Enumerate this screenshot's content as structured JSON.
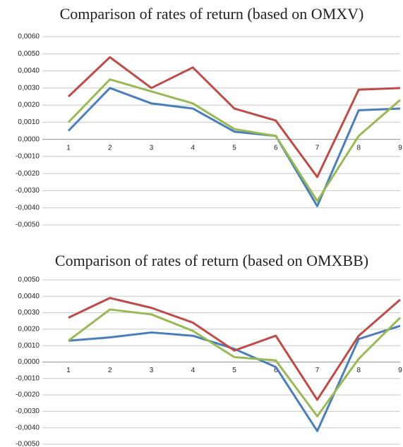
{
  "chart_data": [
    {
      "type": "line",
      "title": "Comparison of rates of return (based on OMXV)",
      "categories": [
        "1",
        "2",
        "3",
        "4",
        "5",
        "6",
        "7",
        "8",
        "9"
      ],
      "series": [
        {
          "color": "#4a7ebb",
          "values": [
            0.0005,
            0.003,
            0.0021,
            0.0018,
            0.00045,
            0.0002,
            -0.0039,
            0.0017,
            0.0018
          ]
        },
        {
          "color": "#be4b48",
          "values": [
            0.0025,
            0.0048,
            0.003,
            0.0042,
            0.0018,
            0.0011,
            -0.0022,
            0.0029,
            0.003
          ]
        },
        {
          "color": "#98b954",
          "values": [
            0.001,
            0.0035,
            0.0028,
            0.0021,
            0.0006,
            0.0002,
            -0.0036,
            0.0002,
            0.0023
          ]
        }
      ],
      "ylim": [
        -0.005,
        0.006
      ],
      "yticks": [
        {
          "value": 0.006,
          "label": "0,0060"
        },
        {
          "value": 0.005,
          "label": "0,0050"
        },
        {
          "value": 0.004,
          "label": "0,0040"
        },
        {
          "value": 0.003,
          "label": "0,0030"
        },
        {
          "value": 0.002,
          "label": "0,0020"
        },
        {
          "value": 0.001,
          "label": "0,0010"
        },
        {
          "value": 0,
          "label": "0,0000"
        },
        {
          "value": -0.001,
          "label": "-0,0010"
        },
        {
          "value": -0.002,
          "label": "-0,0020"
        },
        {
          "value": -0.003,
          "label": "-0,0030"
        },
        {
          "value": -0.004,
          "label": "-0,0040"
        },
        {
          "value": -0.005,
          "label": "-0,0050"
        }
      ],
      "grid": true
    },
    {
      "type": "line",
      "title": "Comparison of rates of return (based on OMXBB)",
      "categories": [
        "1",
        "2",
        "3",
        "4",
        "5",
        "6",
        "7",
        "8",
        "9"
      ],
      "series": [
        {
          "color": "#4a7ebb",
          "values": [
            0.0013,
            0.0015,
            0.0018,
            0.0016,
            0.0008,
            -0.0003,
            -0.0042,
            0.0014,
            0.0022
          ]
        },
        {
          "color": "#be4b48",
          "values": [
            0.0027,
            0.0039,
            0.0033,
            0.0024,
            0.0007,
            0.0016,
            -0.0023,
            0.0016,
            0.0038
          ]
        },
        {
          "color": "#98b954",
          "values": [
            0.0013,
            0.0032,
            0.0029,
            0.0019,
            0.0003,
            0.0001,
            -0.0033,
            0.0002,
            0.0027
          ]
        }
      ],
      "ylim": [
        -0.005,
        0.005
      ],
      "yticks": [
        {
          "value": 0.005,
          "label": "0,0050"
        },
        {
          "value": 0.004,
          "label": "0,0040"
        },
        {
          "value": 0.003,
          "label": "0,0030"
        },
        {
          "value": 0.002,
          "label": "0,0020"
        },
        {
          "value": 0.001,
          "label": "0,0010"
        },
        {
          "value": 0,
          "label": "0,0000"
        },
        {
          "value": -0.001,
          "label": "-0,0010"
        },
        {
          "value": -0.002,
          "label": "-0,0020"
        },
        {
          "value": -0.003,
          "label": "-0,0030"
        },
        {
          "value": -0.004,
          "label": "-0,0040"
        },
        {
          "value": -0.005,
          "label": "-0,0050"
        }
      ],
      "grid": true
    }
  ]
}
